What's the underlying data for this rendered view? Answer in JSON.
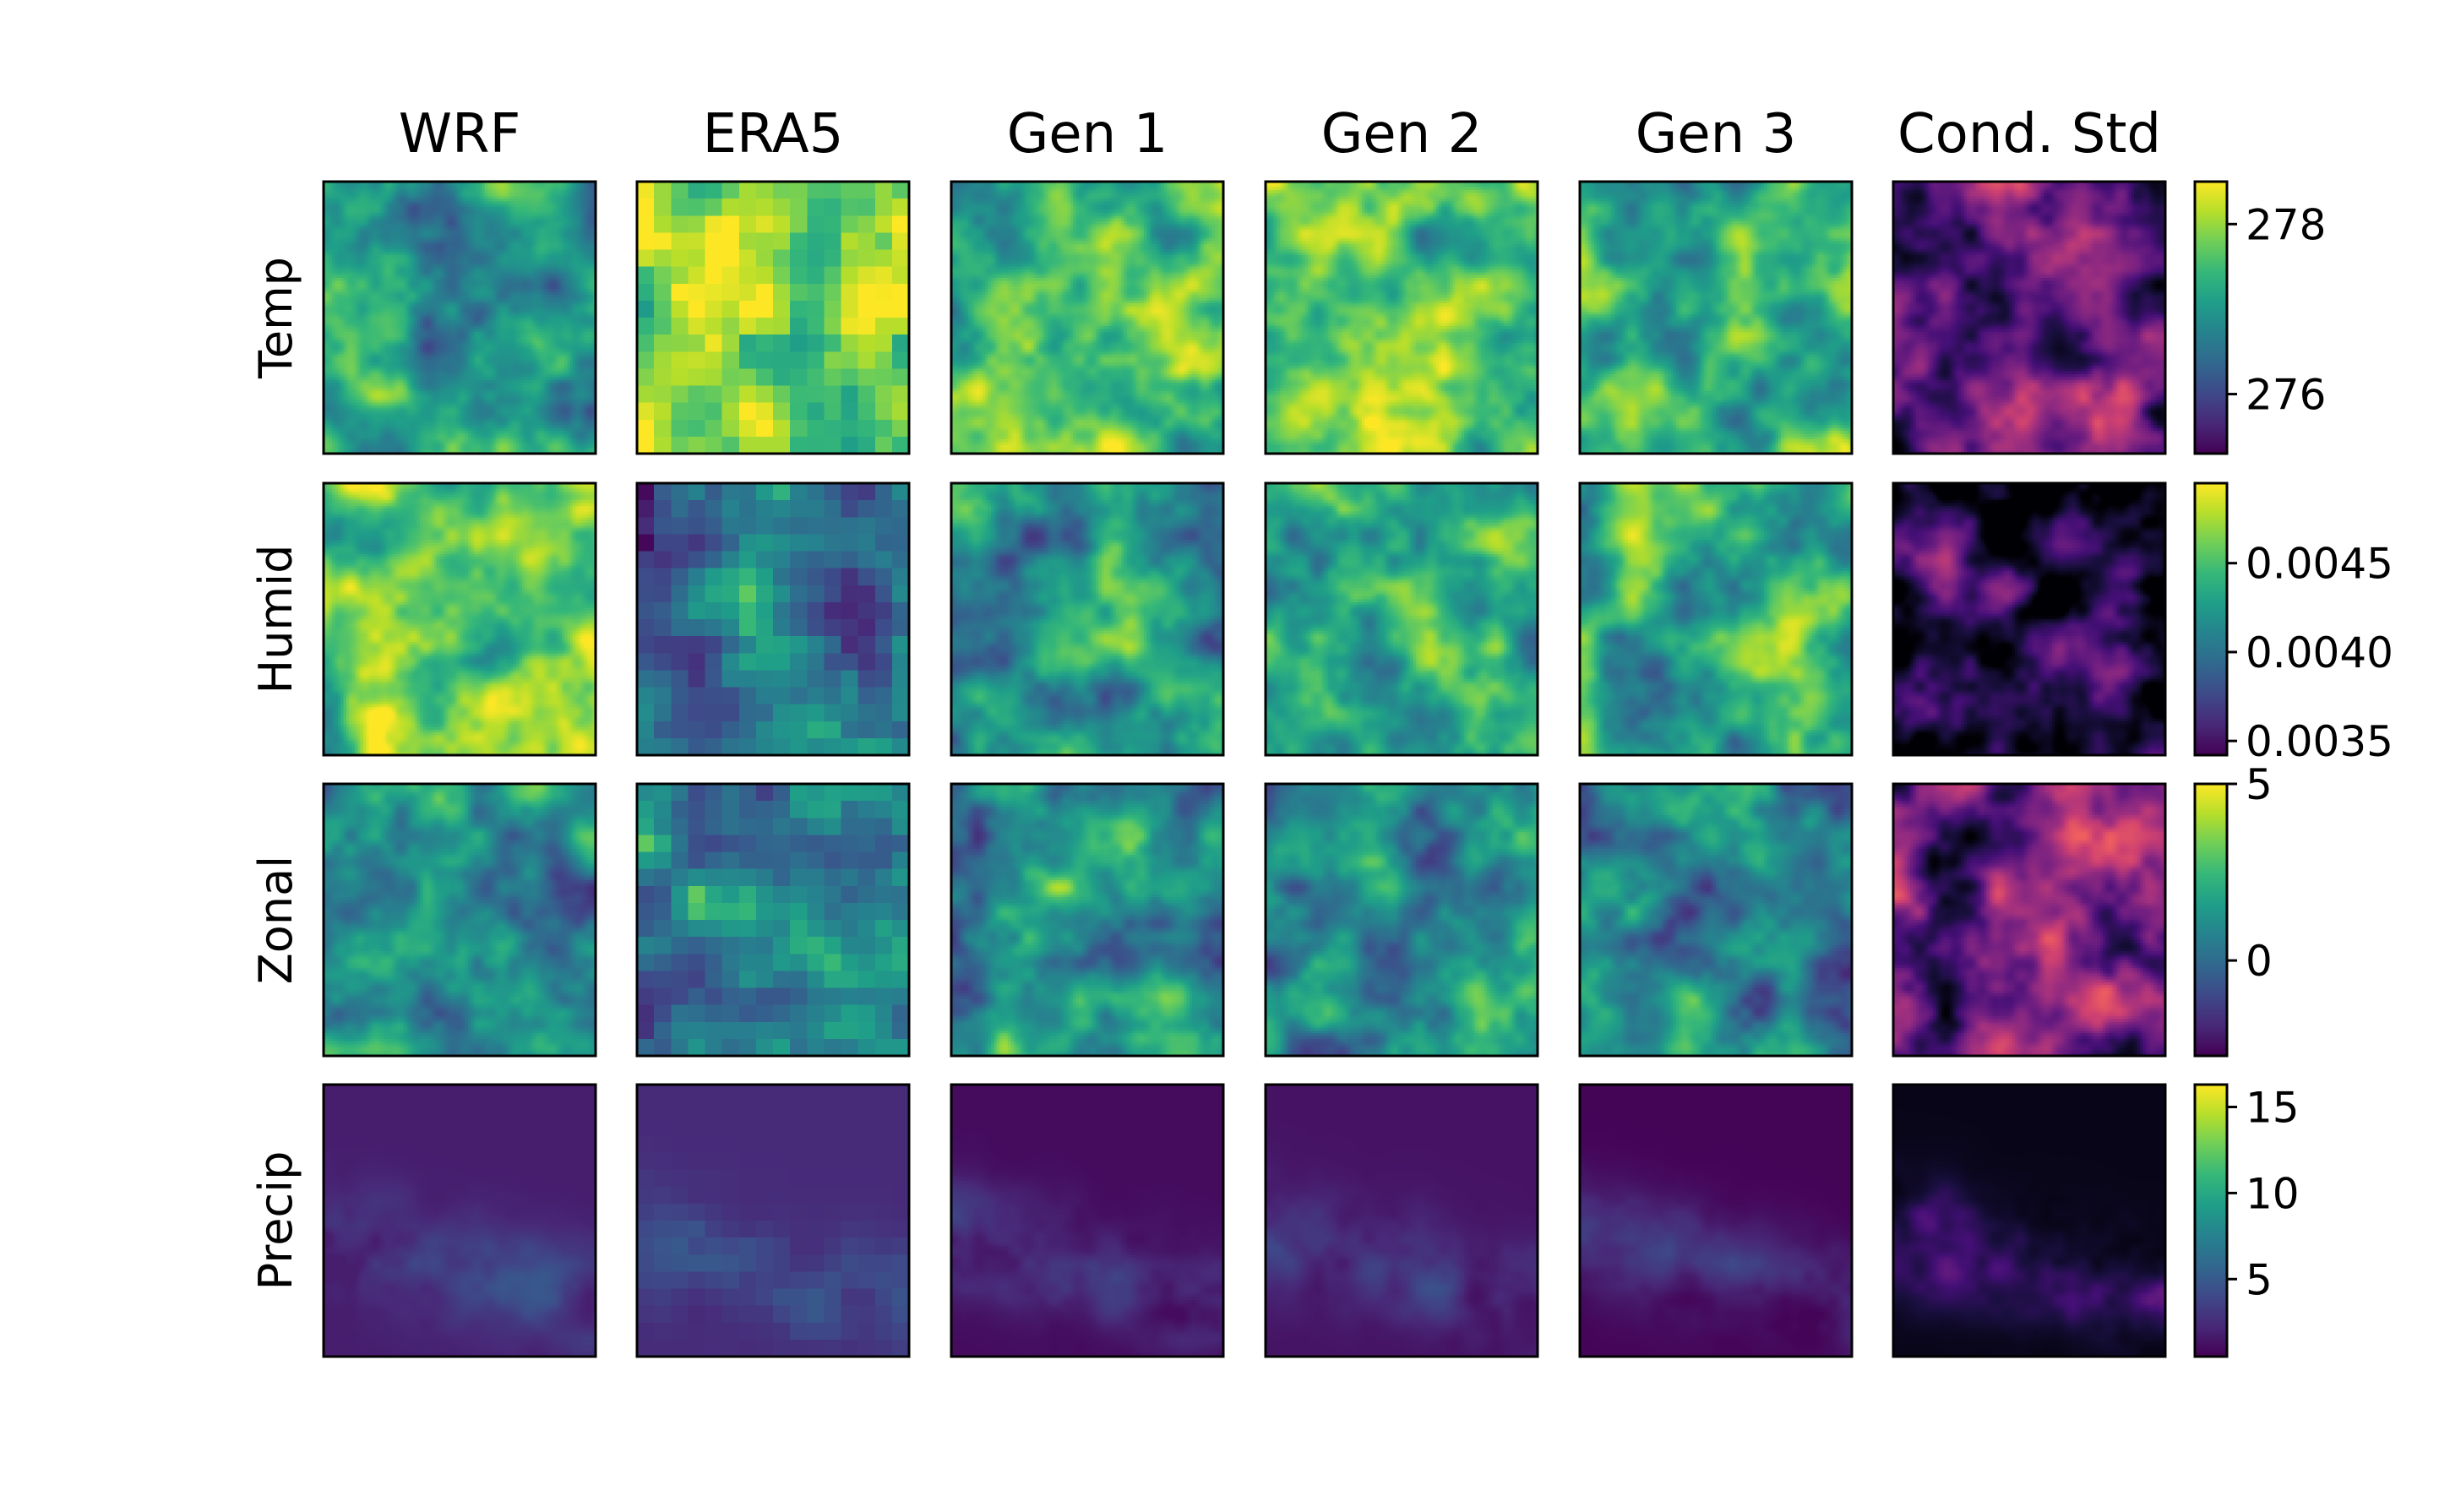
{
  "chart_data": {
    "type": "heatmap",
    "columns": [
      "WRF",
      "ERA5",
      "Gen 1",
      "Gen 2",
      "Gen 3",
      "Cond. Std"
    ],
    "rows": [
      "Temp",
      "Humid",
      "Zonal",
      "Precip"
    ],
    "colormaps": {
      "fields": "viridis",
      "std": "magma"
    },
    "colorbars": [
      {
        "row": "Temp",
        "range": [
          275.3,
          278.5
        ],
        "ticks": [
          {
            "value": 276,
            "label": "276"
          },
          {
            "value": 278,
            "label": "278"
          }
        ]
      },
      {
        "row": "Humid",
        "range": [
          0.00342,
          0.00495
        ],
        "ticks": [
          {
            "value": 0.0035,
            "label": "0.0035"
          },
          {
            "value": 0.004,
            "label": "0.0040"
          },
          {
            "value": 0.0045,
            "label": "0.0045"
          }
        ]
      },
      {
        "row": "Zonal",
        "range": [
          -2.7,
          5.0
        ],
        "ticks": [
          {
            "value": 0,
            "label": "0"
          },
          {
            "value": 5,
            "label": "5"
          }
        ]
      },
      {
        "row": "Precip",
        "range": [
          0.5,
          16.3
        ],
        "ticks": [
          {
            "value": 5,
            "label": "5"
          },
          {
            "value": 10,
            "label": "10"
          },
          {
            "value": 15,
            "label": "15"
          }
        ]
      }
    ],
    "panel_levels": {
      "Temp": {
        "WRF": 0.55,
        "ERA5": 0.85,
        "Gen 1": 0.7,
        "Gen 2": 0.72,
        "Gen 3": 0.68,
        "Cond. Std": 0.3
      },
      "Humid": {
        "WRF": 0.75,
        "ERA5": 0.35,
        "Gen 1": 0.55,
        "Gen 2": 0.62,
        "Gen 3": 0.6,
        "Cond. Std": 0.15
      },
      "Zonal": {
        "WRF": 0.45,
        "ERA5": 0.4,
        "Gen 1": 0.5,
        "Gen 2": 0.45,
        "Gen 3": 0.45,
        "Cond. Std": 0.35
      },
      "Precip": {
        "WRF": 0.08,
        "ERA5": 0.12,
        "Gen 1": 0.03,
        "Gen 2": 0.05,
        "Gen 3": 0.01,
        "Cond. Std": 0.04
      }
    },
    "grid": false
  }
}
